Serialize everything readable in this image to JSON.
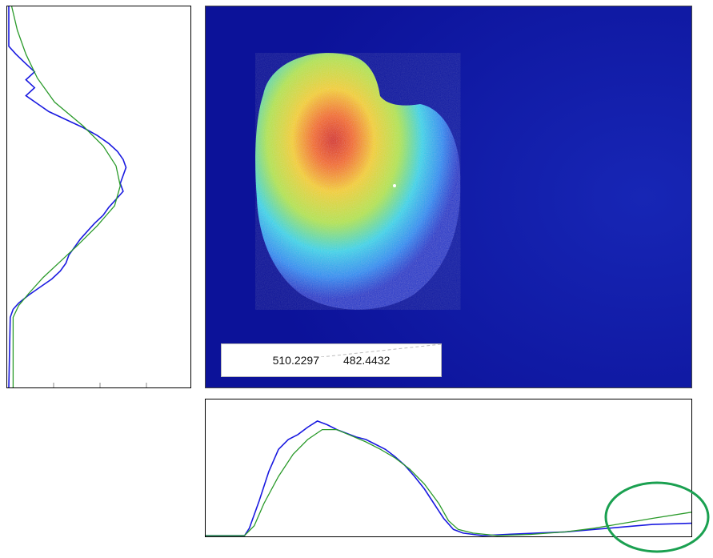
{
  "readout": {
    "x_value": "510.2297",
    "y_value": "482.4432"
  },
  "colors": {
    "measured_profile": "#1a1ae0",
    "fit_profile": "#2a9a2a",
    "highlight": "#1aa050",
    "image_background": "#0f1aa6"
  },
  "chart_data": [
    {
      "type": "line",
      "title": "",
      "orientation": "vertical",
      "axis": "y-profile",
      "y_range": [
        0,
        478
      ],
      "x_range": [
        0,
        1
      ],
      "series": [
        {
          "role": "measured",
          "color": "#1a1ae0",
          "points": [
            [
              0.0,
              0
            ],
            [
              0.0,
              50
            ],
            [
              0.05,
              60
            ],
            [
              0.12,
              72
            ],
            [
              0.18,
              82
            ],
            [
              0.12,
              92
            ],
            [
              0.18,
              102
            ],
            [
              0.12,
              112
            ],
            [
              0.2,
              122
            ],
            [
              0.28,
              132
            ],
            [
              0.4,
              142
            ],
            [
              0.52,
              152
            ],
            [
              0.62,
              162
            ],
            [
              0.7,
              172
            ],
            [
              0.76,
              182
            ],
            [
              0.8,
              192
            ],
            [
              0.82,
              202
            ],
            [
              0.8,
              212
            ],
            [
              0.78,
              222
            ],
            [
              0.8,
              232
            ],
            [
              0.75,
              242
            ],
            [
              0.7,
              252
            ],
            [
              0.66,
              262
            ],
            [
              0.6,
              272
            ],
            [
              0.55,
              282
            ],
            [
              0.5,
              292
            ],
            [
              0.46,
              302
            ],
            [
              0.42,
              312
            ],
            [
              0.4,
              322
            ],
            [
              0.36,
              332
            ],
            [
              0.3,
              342
            ],
            [
              0.22,
              352
            ],
            [
              0.14,
              362
            ],
            [
              0.07,
              372
            ],
            [
              0.03,
              380
            ],
            [
              0.01,
              390
            ],
            [
              0.0,
              478
            ]
          ]
        },
        {
          "role": "fit",
          "color": "#2a9a2a",
          "points": [
            [
              0.02,
              0
            ],
            [
              0.06,
              30
            ],
            [
              0.12,
              60
            ],
            [
              0.2,
              90
            ],
            [
              0.32,
              120
            ],
            [
              0.52,
              150
            ],
            [
              0.66,
              175
            ],
            [
              0.75,
              200
            ],
            [
              0.78,
              225
            ],
            [
              0.74,
              250
            ],
            [
              0.62,
              275
            ],
            [
              0.48,
              300
            ],
            [
              0.36,
              320
            ],
            [
              0.24,
              340
            ],
            [
              0.14,
              360
            ],
            [
              0.07,
              375
            ],
            [
              0.03,
              390
            ],
            [
              0.03,
              478
            ]
          ]
        }
      ]
    },
    {
      "type": "line",
      "title": "",
      "orientation": "horizontal",
      "axis": "x-profile",
      "x_range": [
        0,
        1
      ],
      "y_range": [
        0,
        1
      ],
      "series": [
        {
          "role": "measured",
          "color": "#1a1ae0",
          "points": [
            [
              0.0,
              0.0
            ],
            [
              0.08,
              0.0
            ],
            [
              0.09,
              0.06
            ],
            [
              0.11,
              0.28
            ],
            [
              0.13,
              0.52
            ],
            [
              0.15,
              0.7
            ],
            [
              0.17,
              0.78
            ],
            [
              0.19,
              0.82
            ],
            [
              0.21,
              0.88
            ],
            [
              0.23,
              0.93
            ],
            [
              0.25,
              0.9
            ],
            [
              0.27,
              0.86
            ],
            [
              0.29,
              0.83
            ],
            [
              0.31,
              0.8
            ],
            [
              0.33,
              0.78
            ],
            [
              0.35,
              0.74
            ],
            [
              0.37,
              0.7
            ],
            [
              0.39,
              0.64
            ],
            [
              0.41,
              0.57
            ],
            [
              0.43,
              0.48
            ],
            [
              0.45,
              0.38
            ],
            [
              0.47,
              0.26
            ],
            [
              0.49,
              0.14
            ],
            [
              0.51,
              0.05
            ],
            [
              0.53,
              0.02
            ],
            [
              0.57,
              0.0
            ],
            [
              0.62,
              0.01
            ],
            [
              0.68,
              0.02
            ],
            [
              0.74,
              0.03
            ],
            [
              0.8,
              0.05
            ],
            [
              0.86,
              0.07
            ],
            [
              0.92,
              0.09
            ],
            [
              1.0,
              0.1
            ]
          ]
        },
        {
          "role": "fit",
          "color": "#2a9a2a",
          "points": [
            [
              0.0,
              0.0
            ],
            [
              0.08,
              0.0
            ],
            [
              0.1,
              0.08
            ],
            [
              0.12,
              0.26
            ],
            [
              0.15,
              0.48
            ],
            [
              0.18,
              0.66
            ],
            [
              0.21,
              0.78
            ],
            [
              0.24,
              0.86
            ],
            [
              0.27,
              0.86
            ],
            [
              0.3,
              0.81
            ],
            [
              0.33,
              0.76
            ],
            [
              0.36,
              0.7
            ],
            [
              0.39,
              0.63
            ],
            [
              0.42,
              0.54
            ],
            [
              0.45,
              0.42
            ],
            [
              0.48,
              0.26
            ],
            [
              0.5,
              0.12
            ],
            [
              0.52,
              0.05
            ],
            [
              0.55,
              0.02
            ],
            [
              0.6,
              0.0
            ],
            [
              0.67,
              0.01
            ],
            [
              0.74,
              0.03
            ],
            [
              0.8,
              0.06
            ],
            [
              0.86,
              0.1
            ],
            [
              0.92,
              0.14
            ],
            [
              1.0,
              0.19
            ]
          ]
        }
      ]
    }
  ]
}
